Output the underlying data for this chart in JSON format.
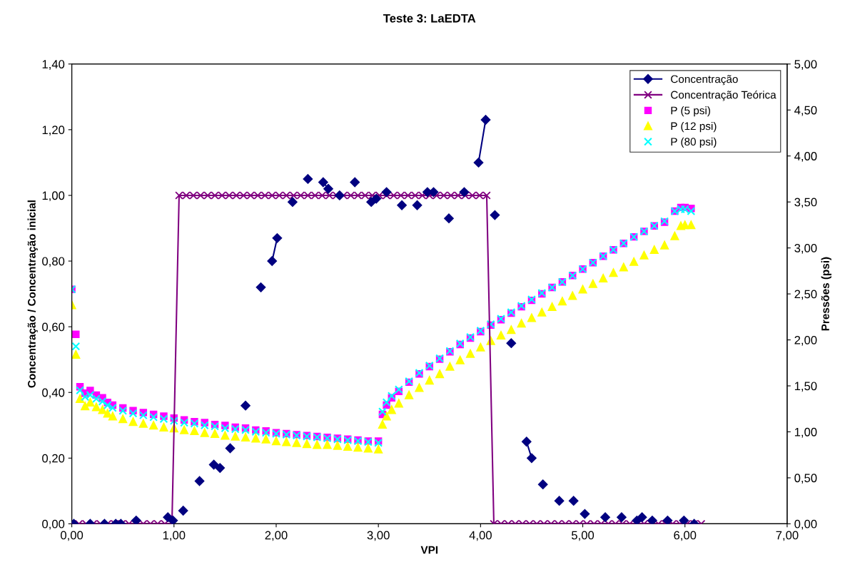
{
  "chart_data": {
    "type": "line",
    "title": "Teste 3: LaEDTA",
    "xlabel": "VPI",
    "ylabel": "Concentração / Concentração inicial",
    "y2label": "Pressões (psi)",
    "xlim": [
      0,
      7
    ],
    "xticks": [
      {
        "value": 0,
        "label": "0,00"
      },
      {
        "value": 1,
        "label": "1,00"
      },
      {
        "value": 2,
        "label": "2,00"
      },
      {
        "value": 3,
        "label": "3,00"
      },
      {
        "value": 4,
        "label": "4,00"
      },
      {
        "value": 5,
        "label": "5,00"
      },
      {
        "value": 6,
        "label": "6,00"
      },
      {
        "value": 7,
        "label": "7,00"
      }
    ],
    "ylim": [
      0,
      1.4
    ],
    "yticks": [
      {
        "value": 0,
        "label": "0,00"
      },
      {
        "value": 0.2,
        "label": "0,20"
      },
      {
        "value": 0.4,
        "label": "0,40"
      },
      {
        "value": 0.6,
        "label": "0,60"
      },
      {
        "value": 0.8,
        "label": "0,80"
      },
      {
        "value": 1.0,
        "label": "1,00"
      },
      {
        "value": 1.2,
        "label": "1,20"
      },
      {
        "value": 1.4,
        "label": "1,40"
      }
    ],
    "y2lim": [
      0,
      5
    ],
    "y2ticks": [
      {
        "value": 0,
        "label": "0,00"
      },
      {
        "value": 0.5,
        "label": "0,50"
      },
      {
        "value": 1.0,
        "label": "1,00"
      },
      {
        "value": 1.5,
        "label": "1,50"
      },
      {
        "value": 2.0,
        "label": "2,00"
      },
      {
        "value": 2.5,
        "label": "2,50"
      },
      {
        "value": 3.0,
        "label": "3,00"
      },
      {
        "value": 3.5,
        "label": "3,50"
      },
      {
        "value": 4.0,
        "label": "4,00"
      },
      {
        "value": 4.5,
        "label": "4,50"
      },
      {
        "value": 5.0,
        "label": "5,00"
      }
    ],
    "grid": false,
    "legend": "top right",
    "series": [
      {
        "name": "Concentração",
        "color": "#000080",
        "marker": "diamond",
        "x": [
          0.02,
          null,
          0.18,
          null,
          0.32,
          null,
          0.43,
          null,
          0.48,
          null,
          0.63,
          null,
          0.94,
          null,
          0.99,
          null,
          1.09,
          null,
          1.25,
          null,
          1.39,
          null,
          1.45,
          null,
          1.55,
          null,
          1.7,
          null,
          1.85,
          null,
          1.96,
          2.01,
          null,
          2.16,
          null,
          2.31,
          null,
          2.46,
          2.51,
          null,
          2.62,
          null,
          2.77,
          null,
          2.93,
          null,
          2.98,
          null,
          3.08,
          null,
          3.23,
          null,
          3.38,
          null,
          3.48,
          null,
          3.54,
          null,
          3.69,
          null,
          3.84,
          null,
          3.98,
          4.05,
          null,
          4.14,
          null,
          4.3,
          null,
          4.45,
          4.5,
          null,
          4.61,
          null,
          4.77,
          null,
          4.91,
          null,
          5.02,
          null,
          5.22,
          null,
          5.38,
          null,
          5.53,
          null,
          5.58,
          null,
          5.68,
          null,
          5.83,
          null,
          5.99,
          null,
          6.09
        ],
        "values": [
          0,
          null,
          0,
          null,
          0,
          null,
          0,
          null,
          0,
          null,
          0.01,
          null,
          0.02,
          null,
          0.01,
          null,
          0.04,
          null,
          0.13,
          null,
          0.18,
          null,
          0.17,
          null,
          0.23,
          null,
          0.36,
          null,
          0.72,
          null,
          0.8,
          0.87,
          null,
          0.98,
          null,
          1.05,
          null,
          1.04,
          1.02,
          null,
          1.0,
          null,
          1.04,
          null,
          0.98,
          null,
          0.99,
          null,
          1.01,
          null,
          0.97,
          null,
          0.97,
          null,
          1.01,
          null,
          1.01,
          null,
          0.93,
          null,
          1.01,
          null,
          1.1,
          1.23,
          null,
          0.94,
          null,
          0.55,
          null,
          0.25,
          0.2,
          null,
          0.12,
          null,
          0.07,
          null,
          0.07,
          null,
          0.03,
          null,
          0.02,
          null,
          0.02,
          null,
          0.01,
          null,
          0.02,
          null,
          0.01,
          null,
          0.01,
          null,
          0.01,
          null,
          0.0
        ]
      },
      {
        "name": "Concentração Teórica",
        "color": "#800080",
        "marker": "cross",
        "x": [
          0,
          0.07,
          0.14,
          0.21,
          0.28,
          0.35,
          0.42,
          0.49,
          0.56,
          0.63,
          0.7,
          0.77,
          0.84,
          0.91,
          0.98,
          1.05,
          1.12,
          1.19,
          1.26,
          1.33,
          1.4,
          1.47,
          1.54,
          1.61,
          1.68,
          1.75,
          1.82,
          1.89,
          1.96,
          2.03,
          2.1,
          2.17,
          2.24,
          2.31,
          2.38,
          2.45,
          2.52,
          2.59,
          2.66,
          2.73,
          2.8,
          2.87,
          2.94,
          3.01,
          3.08,
          3.15,
          3.22,
          3.29,
          3.36,
          3.43,
          3.5,
          3.57,
          3.64,
          3.71,
          3.78,
          3.85,
          3.92,
          3.99,
          4.06,
          4.13,
          4.2,
          4.27,
          4.34,
          4.41,
          4.48,
          4.55,
          4.62,
          4.69,
          4.76,
          4.83,
          4.9,
          4.97,
          5.04,
          5.11,
          5.18,
          5.25,
          5.32,
          5.39,
          5.46,
          5.53,
          5.6,
          5.67,
          5.74,
          5.81,
          5.88,
          5.95,
          6.02,
          6.09,
          6.16
        ],
        "values": [
          0,
          0,
          0,
          0,
          0,
          0,
          0,
          0,
          0,
          0,
          0,
          0,
          0,
          0,
          0,
          1,
          1,
          1,
          1,
          1,
          1,
          1,
          1,
          1,
          1,
          1,
          1,
          1,
          1,
          1,
          1,
          1,
          1,
          1,
          1,
          1,
          1,
          1,
          1,
          1,
          1,
          1,
          1,
          1,
          1,
          1,
          1,
          1,
          1,
          1,
          1,
          1,
          1,
          1,
          1,
          1,
          1,
          1,
          1,
          0,
          0,
          0,
          0,
          0,
          0,
          0,
          0,
          0,
          0,
          0,
          0,
          0,
          0,
          0,
          0,
          0,
          0,
          0,
          0,
          0,
          0,
          0,
          0,
          0,
          0,
          0,
          0,
          0,
          0
        ]
      },
      {
        "name": "P (5 psi)",
        "type": "scatter",
        "axis": "y2",
        "color": "#ff00ff",
        "marker": "square",
        "x": [
          0,
          0.04,
          0.08,
          0.13,
          0.18,
          0.24,
          0.3,
          0.35,
          0.4,
          0.5,
          0.6,
          0.7,
          0.8,
          0.9,
          1.0,
          1.1,
          1.2,
          1.3,
          1.4,
          1.5,
          1.6,
          1.7,
          1.8,
          1.9,
          2.0,
          2.1,
          2.2,
          2.3,
          2.4,
          2.5,
          2.6,
          2.7,
          2.8,
          2.9,
          3.0,
          3.04,
          3.08,
          3.13,
          3.2,
          3.3,
          3.4,
          3.5,
          3.6,
          3.7,
          3.8,
          3.9,
          4.0,
          4.1,
          4.2,
          4.3,
          4.4,
          4.5,
          4.6,
          4.7,
          4.8,
          4.9,
          5.0,
          5.1,
          5.2,
          5.3,
          5.4,
          5.5,
          5.6,
          5.7,
          5.8,
          5.9,
          5.96,
          6.0,
          6.06
        ],
        "values": [
          2.55,
          2.06,
          1.49,
          1.42,
          1.45,
          1.4,
          1.37,
          1.32,
          1.29,
          1.26,
          1.23,
          1.21,
          1.19,
          1.17,
          1.15,
          1.13,
          1.11,
          1.1,
          1.08,
          1.07,
          1.05,
          1.04,
          1.02,
          1.01,
          0.99,
          0.98,
          0.97,
          0.96,
          0.95,
          0.94,
          0.93,
          0.92,
          0.91,
          0.9,
          0.9,
          1.19,
          1.29,
          1.37,
          1.44,
          1.54,
          1.63,
          1.71,
          1.79,
          1.87,
          1.95,
          2.02,
          2.09,
          2.16,
          2.22,
          2.29,
          2.36,
          2.43,
          2.5,
          2.57,
          2.63,
          2.7,
          2.77,
          2.84,
          2.91,
          2.98,
          3.05,
          3.12,
          3.18,
          3.24,
          3.28,
          3.4,
          3.44,
          3.44,
          3.43
        ]
      },
      {
        "name": "P (12 psi)",
        "type": "scatter",
        "axis": "y2",
        "color": "#ffff00",
        "marker": "triangle",
        "x": [
          0,
          0.04,
          0.08,
          0.13,
          0.18,
          0.24,
          0.3,
          0.35,
          0.4,
          0.5,
          0.6,
          0.7,
          0.8,
          0.9,
          1.0,
          1.1,
          1.2,
          1.3,
          1.4,
          1.5,
          1.6,
          1.7,
          1.8,
          1.9,
          2.0,
          2.1,
          2.2,
          2.3,
          2.4,
          2.5,
          2.6,
          2.7,
          2.8,
          2.9,
          3.0,
          3.04,
          3.08,
          3.13,
          3.2,
          3.3,
          3.4,
          3.5,
          3.6,
          3.7,
          3.8,
          3.9,
          4.0,
          4.1,
          4.2,
          4.3,
          4.4,
          4.5,
          4.6,
          4.7,
          4.8,
          4.9,
          5.0,
          5.1,
          5.2,
          5.3,
          5.4,
          5.5,
          5.6,
          5.7,
          5.8,
          5.9,
          5.96,
          6.0,
          6.06
        ],
        "values": [
          2.38,
          1.84,
          1.36,
          1.28,
          1.32,
          1.27,
          1.24,
          1.2,
          1.17,
          1.14,
          1.11,
          1.09,
          1.07,
          1.05,
          1.04,
          1.02,
          1.01,
          0.99,
          0.98,
          0.96,
          0.95,
          0.94,
          0.93,
          0.92,
          0.9,
          0.89,
          0.88,
          0.87,
          0.86,
          0.86,
          0.85,
          0.84,
          0.83,
          0.82,
          0.81,
          1.08,
          1.17,
          1.24,
          1.31,
          1.4,
          1.48,
          1.56,
          1.63,
          1.71,
          1.78,
          1.85,
          1.92,
          1.99,
          2.05,
          2.11,
          2.18,
          2.24,
          2.3,
          2.36,
          2.42,
          2.48,
          2.55,
          2.61,
          2.67,
          2.73,
          2.79,
          2.85,
          2.92,
          2.98,
          3.03,
          3.13,
          3.24,
          3.25,
          3.25
        ]
      },
      {
        "name": "P (80 psi)",
        "type": "scatter",
        "axis": "y2",
        "color": "#00ffff",
        "marker": "cross",
        "x": [
          0,
          0.04,
          0.08,
          0.13,
          0.18,
          0.24,
          0.3,
          0.35,
          0.4,
          0.5,
          0.6,
          0.7,
          0.8,
          0.9,
          1.0,
          1.1,
          1.2,
          1.3,
          1.4,
          1.5,
          1.6,
          1.7,
          1.8,
          1.9,
          2.0,
          2.1,
          2.2,
          2.3,
          2.4,
          2.5,
          2.6,
          2.7,
          2.8,
          2.9,
          3.0,
          3.04,
          3.08,
          3.13,
          3.2,
          3.3,
          3.4,
          3.5,
          3.6,
          3.7,
          3.8,
          3.9,
          4.0,
          4.1,
          4.2,
          4.3,
          4.4,
          4.5,
          4.6,
          4.7,
          4.8,
          4.9,
          5.0,
          5.1,
          5.2,
          5.3,
          5.4,
          5.5,
          5.6,
          5.7,
          5.8,
          5.9,
          5.96,
          6.0,
          6.06
        ],
        "values": [
          2.55,
          1.93,
          1.45,
          1.38,
          1.4,
          1.36,
          1.33,
          1.29,
          1.26,
          1.23,
          1.2,
          1.18,
          1.16,
          1.14,
          1.12,
          1.1,
          1.09,
          1.07,
          1.06,
          1.04,
          1.03,
          1.02,
          1.0,
          0.99,
          0.98,
          0.97,
          0.96,
          0.95,
          0.94,
          0.93,
          0.92,
          0.91,
          0.9,
          0.89,
          0.88,
          1.22,
          1.32,
          1.39,
          1.46,
          1.55,
          1.64,
          1.72,
          1.8,
          1.88,
          1.96,
          2.03,
          2.1,
          2.17,
          2.23,
          2.3,
          2.37,
          2.44,
          2.51,
          2.57,
          2.63,
          2.7,
          2.77,
          2.84,
          2.91,
          2.98,
          3.05,
          3.12,
          3.18,
          3.24,
          3.29,
          3.4,
          3.42,
          3.42,
          3.4
        ]
      }
    ]
  }
}
